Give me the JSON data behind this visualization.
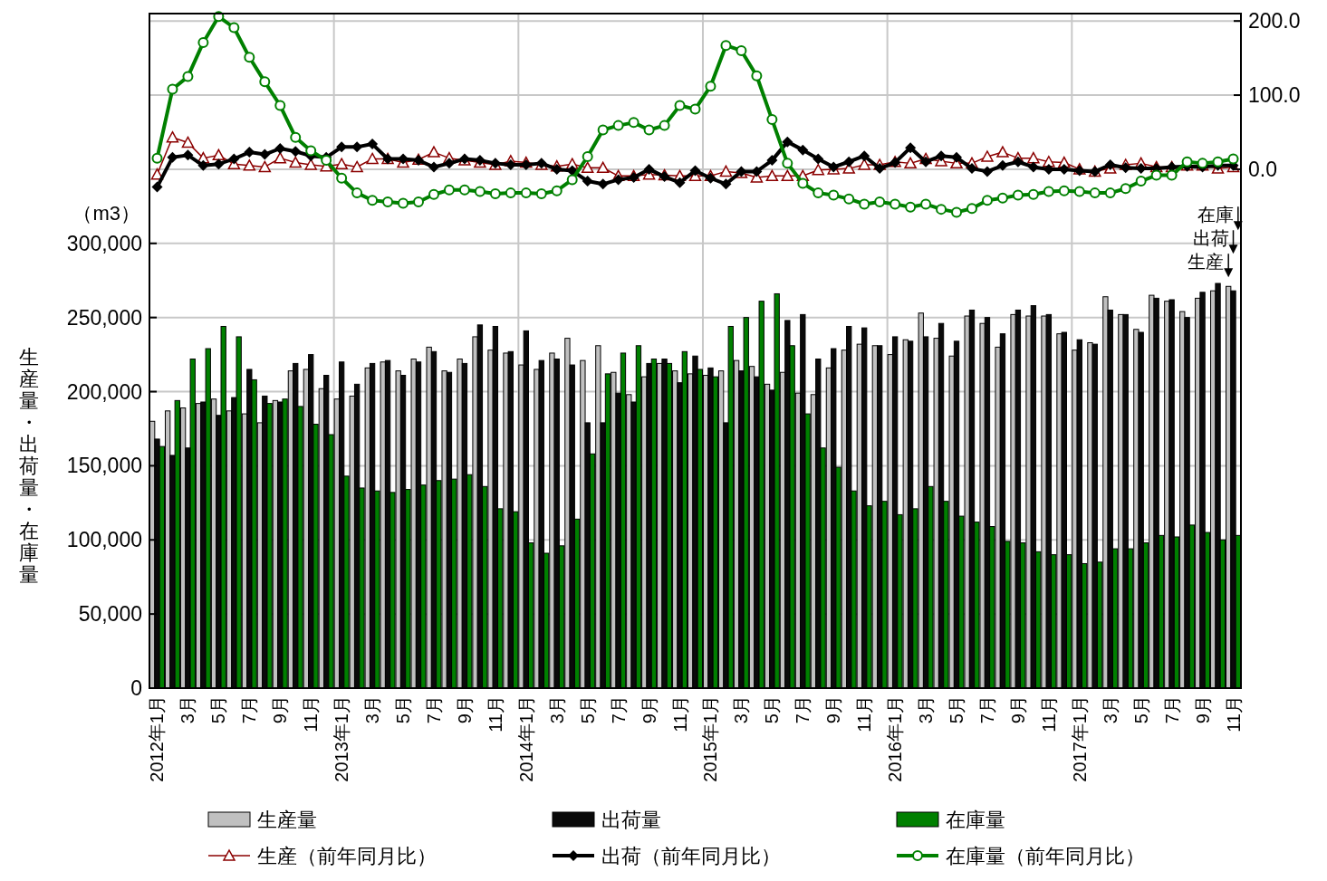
{
  "chart_data": {
    "type": "bar",
    "ylabel": "生産量・出荷量・在庫量",
    "categories": [
      "2012年1月",
      null,
      "3月",
      null,
      "5月",
      null,
      "7月",
      null,
      "9月",
      null,
      "11月",
      null,
      "2013年1月",
      null,
      "3月",
      null,
      "5月",
      null,
      "7月",
      null,
      "9月",
      null,
      "11月",
      null,
      "2014年1月",
      null,
      "3月",
      null,
      "5月",
      null,
      "7月",
      null,
      "9月",
      null,
      "11月",
      null,
      "2015年1月",
      null,
      "3月",
      null,
      "5月",
      null,
      "7月",
      null,
      "9月",
      null,
      "11月",
      null,
      "2016年1月",
      null,
      "3月",
      null,
      "5月",
      null,
      "7月",
      null,
      "9月",
      null,
      "11月",
      null,
      "2017年1月",
      null,
      "3月",
      null,
      "5月",
      null,
      "7月",
      null,
      "9月",
      null,
      "11月"
    ],
    "series": [
      {
        "name": "生産量",
        "color": "#c0c0c0",
        "values": [
          180000,
          187000,
          189000,
          192000,
          195000,
          187000,
          185000,
          179000,
          194000,
          214000,
          215000,
          202000,
          195000,
          197000,
          216000,
          220000,
          214000,
          222000,
          230000,
          214000,
          222000,
          237000,
          228000,
          226000,
          218000,
          215000,
          226000,
          236000,
          221000,
          231000,
          213000,
          198000,
          210000,
          219000,
          214000,
          212000,
          211000,
          214000,
          221000,
          217000,
          205000,
          213000,
          199000,
          198000,
          216000,
          228000,
          232000,
          231000,
          225000,
          235000,
          253000,
          236000,
          224000,
          251000,
          246000,
          230000,
          252000,
          251000,
          251000,
          239000,
          228000,
          233000,
          264000,
          252000,
          242000,
          265000,
          261000,
          254000,
          263000,
          268000,
          271000
        ]
      },
      {
        "name": "出荷量",
        "color": "#0a0a0a",
        "values": [
          168000,
          157000,
          162000,
          193000,
          184000,
          196000,
          215000,
          197000,
          193000,
          219000,
          225000,
          211000,
          220000,
          205000,
          219000,
          221000,
          211000,
          220000,
          227000,
          213000,
          219000,
          245000,
          244000,
          227000,
          241000,
          221000,
          222000,
          218000,
          179000,
          179000,
          199000,
          193000,
          219000,
          222000,
          206000,
          224000,
          216000,
          179000,
          214000,
          210000,
          201000,
          248000,
          252000,
          222000,
          229000,
          244000,
          243000,
          231000,
          237000,
          234000,
          237000,
          246000,
          234000,
          255000,
          250000,
          239000,
          255000,
          258000,
          252000,
          240000,
          235000,
          232000,
          255000,
          252000,
          240000,
          263000,
          262000,
          250000,
          267000,
          273000,
          268000
        ]
      },
      {
        "name": "在庫量",
        "color": "#008000",
        "values": [
          163000,
          194000,
          222000,
          229000,
          244000,
          237000,
          208000,
          192000,
          195000,
          190000,
          178000,
          171000,
          143000,
          135000,
          133000,
          132000,
          134000,
          137000,
          140000,
          141000,
          144000,
          136000,
          121000,
          119000,
          98000,
          91000,
          96000,
          114000,
          158000,
          212000,
          226000,
          231000,
          222000,
          219000,
          227000,
          215000,
          210000,
          244000,
          250000,
          261000,
          266000,
          231000,
          185000,
          162000,
          149000,
          133000,
          123000,
          126000,
          117000,
          121000,
          136000,
          126000,
          116000,
          112000,
          109000,
          99000,
          98000,
          92000,
          90000,
          90000,
          84000,
          85000,
          94000,
          94000,
          98000,
          103000,
          102000,
          110000,
          105000,
          100000,
          103000
        ]
      },
      {
        "name": "生産（前年同月比）",
        "type": "line",
        "axis": "y2",
        "color": "#8b0000",
        "marker": "triangle",
        "values": [
          -7,
          43,
          36,
          15,
          19,
          7,
          5,
          3,
          15,
          9,
          6,
          4,
          7,
          3,
          14,
          14,
          9,
          13,
          23,
          15,
          12,
          9,
          6,
          11,
          9,
          6,
          4,
          7,
          2,
          2,
          -9,
          -9,
          -7,
          -8,
          -9,
          -9,
          -9,
          -3,
          -5,
          -11,
          -9,
          -9,
          -9,
          -1,
          0,
          1,
          6,
          6,
          10,
          8,
          14,
          11,
          8,
          8,
          17,
          23,
          15,
          15,
          10,
          9,
          0,
          -3,
          1,
          6,
          8,
          3,
          3,
          5,
          5,
          1,
          3
        ]
      },
      {
        "name": "出荷（前年同月比）",
        "type": "line",
        "axis": "y2",
        "color": "#000000",
        "marker": "diamond",
        "values": [
          -24,
          16,
          19,
          5,
          7,
          14,
          23,
          20,
          28,
          24,
          18,
          16,
          30,
          30,
          34,
          14,
          14,
          12,
          3,
          8,
          14,
          12,
          8,
          6,
          6,
          8,
          0,
          -2,
          -16,
          -20,
          -14,
          -11,
          0,
          -10,
          -18,
          -2,
          -12,
          -20,
          -3,
          -3,
          12,
          37,
          26,
          14,
          3,
          10,
          18,
          1,
          9,
          29,
          10,
          18,
          16,
          1,
          -3,
          5,
          10,
          3,
          0,
          0,
          -2,
          -3,
          6,
          2,
          1,
          1,
          3,
          4,
          3,
          5,
          5
        ]
      },
      {
        "name": "在庫量（前年同月比）",
        "type": "line",
        "axis": "y2",
        "color": "#008000",
        "marker": "circle",
        "values": [
          15,
          108,
          125,
          171,
          206,
          191,
          151,
          118,
          86,
          43,
          25,
          12,
          -12,
          -32,
          -42,
          -44,
          -46,
          -44,
          -34,
          -28,
          -28,
          -30,
          -33,
          -32,
          -32,
          -33,
          -29,
          -14,
          17,
          53,
          59,
          63,
          53,
          59,
          86,
          81,
          112,
          167,
          160,
          126,
          67,
          8,
          -19,
          -32,
          -35,
          -40,
          -47,
          -44,
          -47,
          -51,
          -47,
          -54,
          -58,
          -53,
          -42,
          -39,
          -35,
          -34,
          -30,
          -29,
          -30,
          -32,
          -32,
          -26,
          -16,
          -8,
          -8,
          10,
          8,
          10,
          14
        ]
      }
    ],
    "ylim": [
      0,
      455000
    ],
    "yticks": [
      {
        "value": 0,
        "label": "0"
      },
      {
        "value": 50000,
        "label": "50,000"
      },
      {
        "value": 100000,
        "label": "100,000"
      },
      {
        "value": 150000,
        "label": "150,000"
      },
      {
        "value": 200000,
        "label": "200,000"
      },
      {
        "value": 250000,
        "label": "250,000"
      },
      {
        "value": 300000,
        "label": "300,000"
      }
    ],
    "y2lim": [
      -700,
      210
    ],
    "y2ticks": [
      {
        "value": 0,
        "label": "0.0"
      },
      {
        "value": 100,
        "label": "100.0"
      },
      {
        "value": 200,
        "label": "200.0"
      }
    ],
    "grid": true,
    "legend": "bottom",
    "annotations": [
      "（m3）",
      "在庫",
      "出荷",
      "生産"
    ]
  }
}
